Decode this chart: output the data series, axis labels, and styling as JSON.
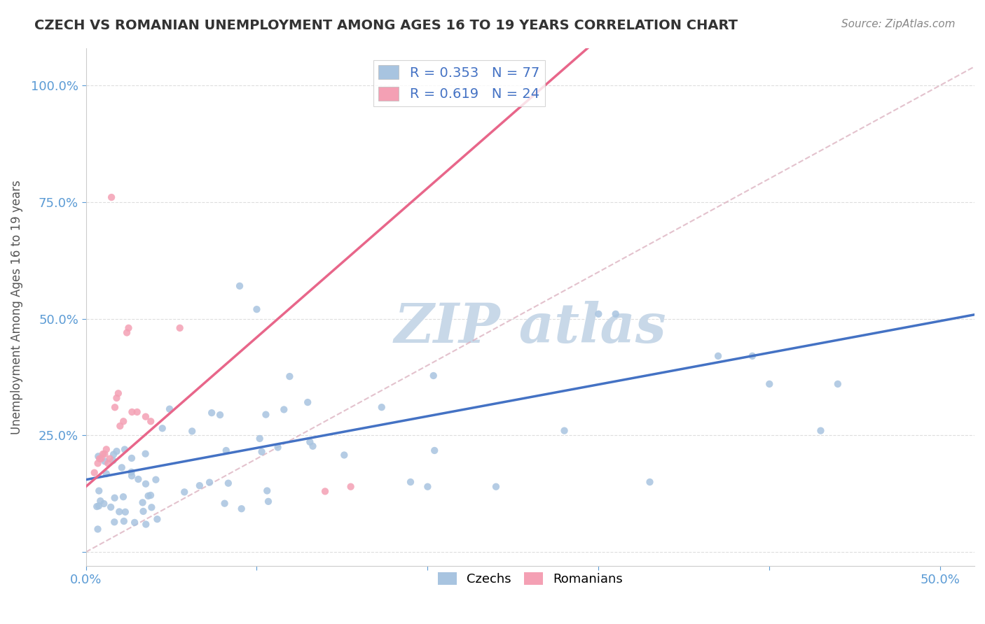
{
  "title": "CZECH VS ROMANIAN UNEMPLOYMENT AMONG AGES 16 TO 19 YEARS CORRELATION CHART",
  "source_text": "Source: ZipAtlas.com",
  "ylabel": "Unemployment Among Ages 16 to 19 years",
  "xlim": [
    0.0,
    0.52
  ],
  "ylim": [
    -0.03,
    1.08
  ],
  "xtick_positions": [
    0.0,
    0.1,
    0.2,
    0.3,
    0.4,
    0.5
  ],
  "xticklabels": [
    "0.0%",
    "",
    "",
    "",
    "",
    "50.0%"
  ],
  "ytick_positions": [
    0.0,
    0.25,
    0.5,
    0.75,
    1.0
  ],
  "yticklabels": [
    "",
    "25.0%",
    "50.0%",
    "75.0%",
    "100.0%"
  ],
  "czech_R": 0.353,
  "czech_N": 77,
  "romanian_R": 0.619,
  "romanian_N": 24,
  "czech_color": "#a8c4e0",
  "romanian_color": "#f4a0b4",
  "czech_line_color": "#4472c4",
  "romanian_line_color": "#e8668a",
  "ref_line_color": "#d8a8b8",
  "watermark_color": "#c8d8e8",
  "grid_color": "#c8c8c8",
  "bg_color": "#ffffff",
  "tick_color": "#5b9bd5",
  "title_color": "#333333",
  "source_color": "#888888",
  "ylabel_color": "#555555",
  "czech_line_intercept": 0.155,
  "czech_line_slope": 0.68,
  "romanian_line_intercept": 0.14,
  "romanian_line_slope": 3.2,
  "ref_line_slope": 2.0,
  "ref_line_intercept": 0.0
}
